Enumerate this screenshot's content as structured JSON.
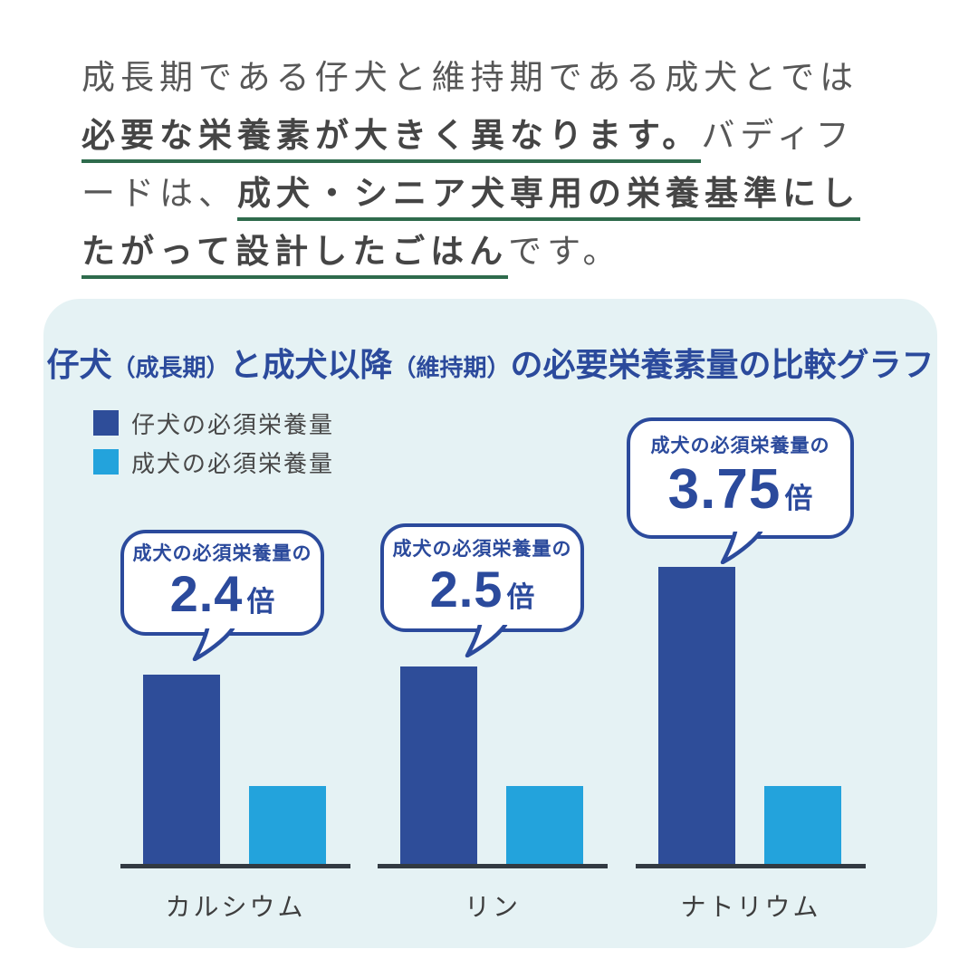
{
  "colors": {
    "brand_blue": "#2B4A9C",
    "bar_dark_blue": "#2E4D99",
    "bar_light_blue": "#23A3DC",
    "card_background": "#E5F2F4",
    "underline_green": "#2E6B4C",
    "body_text": "#575757",
    "axis_line": "#323A42"
  },
  "intro": {
    "lines": [
      {
        "segments": [
          {
            "text": "成長期である仔犬と維持期である成犬とでは",
            "em": false
          }
        ]
      },
      {
        "segments": [
          {
            "text": "必要な栄養素が大きく異なります。",
            "em": true
          },
          {
            "text": "バディフ",
            "em": false
          }
        ]
      },
      {
        "segments": [
          {
            "text": "ードは、",
            "em": false
          },
          {
            "text": "成犬・シニア犬専用の栄養基準にし",
            "em": true
          }
        ]
      },
      {
        "segments": [
          {
            "text": "たがって設計したごはん",
            "em": true
          },
          {
            "text": "です。",
            "em": false
          }
        ]
      }
    ]
  },
  "chart": {
    "title_segments": [
      {
        "text": "仔犬",
        "small": false
      },
      {
        "text": "（成長期）",
        "small": true
      },
      {
        "text": "と成犬以降",
        "small": false
      },
      {
        "text": "（維持期）",
        "small": true
      },
      {
        "text": "の必要栄養素量の比較グラフ",
        "small": false
      }
    ]
  },
  "chart_data": {
    "type": "bar",
    "title": "仔犬（成長期）と成犬以降（維持期）の必要栄養素量の比較グラフ",
    "categories": [
      "カルシウム",
      "リン",
      "ナトリウム"
    ],
    "series": [
      {
        "name": "仔犬の必須栄養量",
        "color": "#2E4D99",
        "values": [
          2.4,
          2.5,
          3.75
        ]
      },
      {
        "name": "成犬の必須栄養量",
        "color": "#23A3DC",
        "values": [
          1,
          1,
          1
        ]
      }
    ],
    "annotations": [
      {
        "category": "カルシウム",
        "prefix": "成犬の必須栄養量の",
        "value": "2.4",
        "suffix": "倍"
      },
      {
        "category": "リン",
        "prefix": "成犬の必須栄養量の",
        "value": "2.5",
        "suffix": "倍"
      },
      {
        "category": "ナトリウム",
        "prefix": "成犬の必須栄養量の",
        "value": "3.75",
        "suffix": "倍"
      }
    ],
    "legend_position": "top-left",
    "grid": false,
    "value_axis_visible": false
  }
}
